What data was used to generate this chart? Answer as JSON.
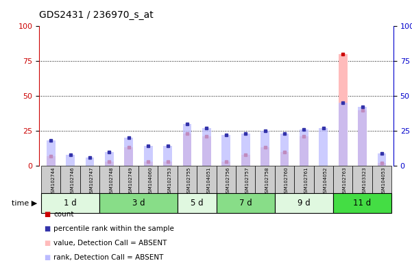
{
  "title": "GDS2431 / 236970_s_at",
  "samples": [
    "GSM102744",
    "GSM102746",
    "GSM102747",
    "GSM102748",
    "GSM102749",
    "GSM104060",
    "GSM102753",
    "GSM102755",
    "GSM104051",
    "GSM102756",
    "GSM102757",
    "GSM102758",
    "GSM102760",
    "GSM102761",
    "GSM104052",
    "GSM102763",
    "GSM103323",
    "GSM104053"
  ],
  "groups": [
    {
      "label": "1 d",
      "indices": [
        0,
        1,
        2
      ],
      "color": "#e0f8e0"
    },
    {
      "label": "3 d",
      "indices": [
        3,
        4,
        5,
        6
      ],
      "color": "#88dd88"
    },
    {
      "label": "5 d",
      "indices": [
        7,
        8
      ],
      "color": "#e0f8e0"
    },
    {
      "label": "7 d",
      "indices": [
        9,
        10,
        11
      ],
      "color": "#88dd88"
    },
    {
      "label": "9 d",
      "indices": [
        12,
        13,
        14
      ],
      "color": "#e0f8e0"
    },
    {
      "label": "11 d",
      "indices": [
        15,
        16,
        17
      ],
      "color": "#44dd44"
    }
  ],
  "count_values": [
    7,
    0,
    0,
    3,
    13,
    3,
    3,
    23,
    21,
    3,
    8,
    13,
    10,
    21,
    0,
    80,
    40,
    2
  ],
  "percentile_values": [
    18,
    8,
    6,
    10,
    20,
    14,
    14,
    30,
    27,
    22,
    23,
    25,
    23,
    26,
    27,
    45,
    42,
    9
  ],
  "absent_value": [
    7,
    0,
    0,
    3,
    13,
    3,
    3,
    23,
    21,
    3,
    8,
    13,
    10,
    21,
    0,
    80,
    40,
    2
  ],
  "absent_rank": [
    18,
    8,
    6,
    10,
    20,
    14,
    14,
    30,
    27,
    22,
    23,
    25,
    23,
    26,
    27,
    45,
    42,
    9
  ],
  "ylim": [
    0,
    100
  ],
  "yticks": [
    0,
    25,
    50,
    75,
    100
  ],
  "background_color": "#ffffff",
  "bar_color_count": "#cc0000",
  "bar_color_percentile": "#3333aa",
  "bar_color_absent_value": "#ffbbbb",
  "bar_color_absent_rank": "#bbbbff",
  "sample_bg_color": "#cccccc",
  "left_axis_color": "#cc0000",
  "right_axis_color": "#0000cc"
}
